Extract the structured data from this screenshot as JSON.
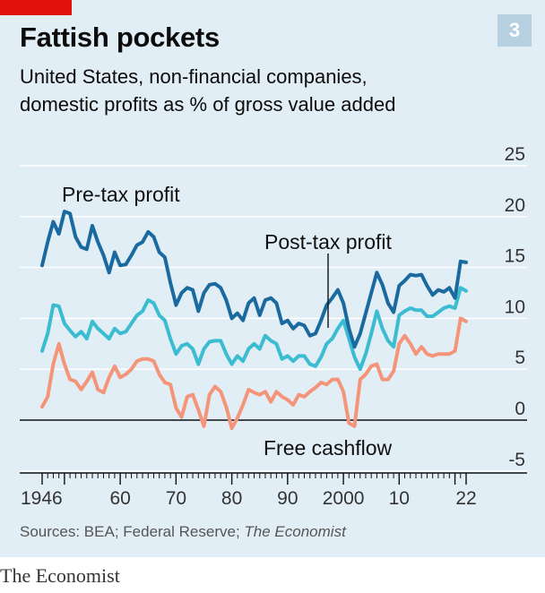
{
  "header": {
    "title": "Fattish pockets",
    "badge": "3",
    "subtitle_line1": "United States, non-financial companies,",
    "subtitle_line2": "domestic profits as % of gross value added"
  },
  "footer": {
    "source_prefix": "Sources: BEA; Federal Reserve;",
    "source_italic": "The Economist",
    "brand": "The Economist"
  },
  "colors": {
    "panel": "#e2eef6",
    "pretax": "#1a6aa0",
    "posttax": "#3bbcd0",
    "cashflow": "#f4957a",
    "grid": "#ffffff",
    "accent": "#e3120b"
  },
  "chart_data": {
    "type": "line",
    "ylim": [
      -5,
      25
    ],
    "yticks": [
      25,
      20,
      15,
      10,
      5,
      0,
      -5
    ],
    "xlim": [
      1946,
      2022
    ],
    "xticks": [
      1946,
      1950,
      1960,
      1970,
      1980,
      1990,
      2000,
      2010,
      2020,
      2022
    ],
    "xtick_labels": [
      "1946",
      "",
      "60",
      "70",
      "80",
      "90",
      "2000",
      "10",
      "",
      "22"
    ],
    "annotations": {
      "pretax": "Pre-tax profit",
      "posttax": "Post-tax profit",
      "cashflow": "Free cashflow"
    },
    "x": [
      1946,
      1947,
      1948,
      1949,
      1950,
      1951,
      1952,
      1953,
      1954,
      1955,
      1956,
      1957,
      1958,
      1959,
      1960,
      1961,
      1962,
      1963,
      1964,
      1965,
      1966,
      1967,
      1968,
      1969,
      1970,
      1971,
      1972,
      1973,
      1974,
      1975,
      1976,
      1977,
      1978,
      1979,
      1980,
      1981,
      1982,
      1983,
      1984,
      1985,
      1986,
      1987,
      1988,
      1989,
      1990,
      1991,
      1992,
      1993,
      1994,
      1995,
      1996,
      1997,
      1998,
      1999,
      2000,
      2001,
      2002,
      2003,
      2004,
      2005,
      2006,
      2007,
      2008,
      2009,
      2010,
      2011,
      2012,
      2013,
      2014,
      2015,
      2016,
      2017,
      2018,
      2019,
      2020,
      2021,
      2022
    ],
    "series": [
      {
        "key": "pretax",
        "values": [
          15.2,
          17.5,
          19.5,
          18.3,
          20.5,
          20.3,
          18.0,
          17.0,
          16.8,
          19.1,
          17.5,
          16.2,
          14.5,
          16.5,
          15.2,
          15.3,
          16.2,
          17.2,
          17.5,
          18.5,
          18.0,
          16.5,
          16.0,
          13.5,
          11.3,
          12.5,
          13.0,
          12.8,
          10.7,
          12.5,
          13.3,
          13.4,
          13.0,
          11.8,
          10.0,
          10.5,
          9.8,
          11.5,
          12.0,
          10.3,
          11.8,
          12.0,
          11.5,
          9.5,
          9.8,
          9.0,
          9.5,
          9.3,
          8.3,
          8.5,
          9.8,
          11.3,
          12.0,
          12.8,
          11.5,
          9.0,
          7.2,
          8.5,
          10.5,
          12.5,
          14.5,
          13.3,
          11.5,
          10.6,
          13.2,
          13.7,
          14.3,
          14.2,
          14.3,
          13.2,
          12.3,
          12.8,
          12.6,
          13.0,
          12.0,
          15.6,
          15.5
        ]
      },
      {
        "key": "posttax",
        "values": [
          6.8,
          8.5,
          11.3,
          11.2,
          9.5,
          8.8,
          8.2,
          8.7,
          8.0,
          9.7,
          9.0,
          8.5,
          8.0,
          9.0,
          8.5,
          8.7,
          9.5,
          10.3,
          10.7,
          11.8,
          11.5,
          10.3,
          9.8,
          8.0,
          6.5,
          7.3,
          7.5,
          7.0,
          5.5,
          7.0,
          7.7,
          7.8,
          7.8,
          6.5,
          5.5,
          6.3,
          5.8,
          7.0,
          7.5,
          7.0,
          8.3,
          7.8,
          7.5,
          6.0,
          6.3,
          5.8,
          6.3,
          6.3,
          5.5,
          5.3,
          6.2,
          7.5,
          8.0,
          9.0,
          9.8,
          8.0,
          6.2,
          5.0,
          6.5,
          8.5,
          10.7,
          9.0,
          7.8,
          7.2,
          10.3,
          10.7,
          11.0,
          10.8,
          10.8,
          10.2,
          10.2,
          10.6,
          11.0,
          11.2,
          11.0,
          13.0,
          12.7
        ]
      },
      {
        "key": "cashflow",
        "values": [
          1.3,
          2.3,
          5.5,
          7.5,
          5.5,
          4.0,
          3.8,
          3.0,
          3.8,
          4.7,
          3.0,
          2.7,
          4.2,
          5.3,
          4.2,
          4.5,
          5.0,
          5.8,
          6.0,
          6.0,
          5.8,
          4.5,
          3.7,
          3.5,
          1.2,
          0.3,
          2.3,
          2.5,
          1.0,
          -0.6,
          2.5,
          3.3,
          2.8,
          1.3,
          -0.8,
          0.2,
          1.5,
          3.0,
          2.7,
          2.5,
          2.8,
          1.8,
          2.8,
          2.3,
          2.0,
          1.5,
          2.5,
          2.3,
          2.8,
          3.2,
          3.7,
          3.5,
          4.0,
          4.0,
          2.8,
          -0.3,
          -0.6,
          4.0,
          4.5,
          5.3,
          5.5,
          4.0,
          4.0,
          4.8,
          7.5,
          8.3,
          7.5,
          6.5,
          7.2,
          6.5,
          6.3,
          6.5,
          6.5,
          6.5,
          6.8,
          10.0,
          9.7
        ]
      }
    ]
  }
}
